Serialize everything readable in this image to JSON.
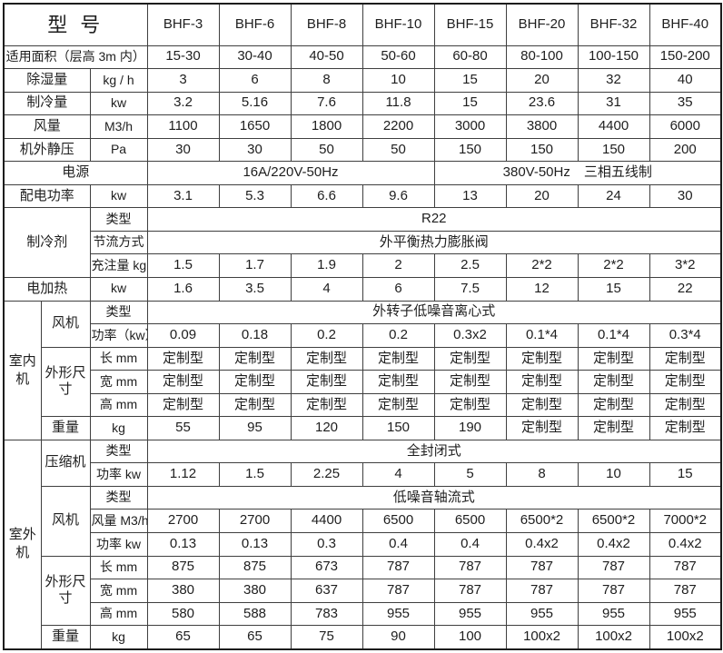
{
  "header": {
    "title": "型 号",
    "models": [
      "BHF-3",
      "BHF-6",
      "BHF-8",
      "BHF-10",
      "BHF-15",
      "BHF-20",
      "BHF-32",
      "BHF-40"
    ]
  },
  "rows": {
    "area": {
      "label": "适用面积（层高 3m 内）",
      "values": [
        "15-30",
        "30-40",
        "40-50",
        "50-60",
        "60-80",
        "80-100",
        "100-150",
        "150-200"
      ]
    },
    "dehumidify": {
      "label": "除湿量",
      "unit": "kg / h",
      "values": [
        "3",
        "6",
        "8",
        "10",
        "15",
        "20",
        "32",
        "40"
      ]
    },
    "cooling": {
      "label": "制冷量",
      "unit": "kw",
      "values": [
        "3.2",
        "5.16",
        "7.6",
        "11.8",
        "15",
        "23.6",
        "31",
        "35"
      ]
    },
    "airflow": {
      "label": "风量",
      "unit": "M3/h",
      "values": [
        "1100",
        "1650",
        "1800",
        "2200",
        "3000",
        "3800",
        "4400",
        "6000"
      ]
    },
    "static_pressure": {
      "label": "机外静压",
      "unit": "Pa",
      "values": [
        "30",
        "30",
        "50",
        "50",
        "150",
        "150",
        "150",
        "200"
      ]
    },
    "power_supply": {
      "label": "电源",
      "left": "16A/220V-50Hz",
      "right": "380V-50Hz　三相五线制"
    },
    "power_distribution": {
      "label": "配电功率",
      "unit": "kw",
      "values": [
        "3.1",
        "5.3",
        "6.6",
        "9.6",
        "13",
        "20",
        "24",
        "30"
      ]
    },
    "refrigerant": {
      "label": "制冷剂",
      "type_label": "类型",
      "type_value": "R22",
      "throttle_label": "节流方式",
      "throttle_value": "外平衡热力膨胀阀",
      "charge_label": "充注量 kg",
      "charge_values": [
        "1.5",
        "1.7",
        "1.9",
        "2",
        "2.5",
        "2*2",
        "2*2",
        "3*2"
      ]
    },
    "electric_heater": {
      "label": "电加热",
      "unit": "kw",
      "values": [
        "1.6",
        "3.5",
        "4",
        "6",
        "7.5",
        "12",
        "15",
        "22"
      ]
    },
    "indoor": {
      "label": "室内机",
      "fan": {
        "label": "风机",
        "type_label": "类型",
        "type_value": "外转子低噪音离心式",
        "power_label": "功率（kw）",
        "power_values": [
          "0.09",
          "0.18",
          "0.2",
          "0.2",
          "0.3x2",
          "0.1*4",
          "0.1*4",
          "0.3*4"
        ]
      },
      "dims": {
        "label": "外形尺寸",
        "length_label": "长 mm",
        "length_values": [
          "定制型",
          "定制型",
          "定制型",
          "定制型",
          "定制型",
          "定制型",
          "定制型",
          "定制型"
        ],
        "width_label": "宽 mm",
        "width_values": [
          "定制型",
          "定制型",
          "定制型",
          "定制型",
          "定制型",
          "定制型",
          "定制型",
          "定制型"
        ],
        "height_label": "高 mm",
        "height_values": [
          "定制型",
          "定制型",
          "定制型",
          "定制型",
          "定制型",
          "定制型",
          "定制型",
          "定制型"
        ]
      },
      "weight": {
        "label": "重量",
        "unit": "kg",
        "values": [
          "55",
          "95",
          "120",
          "150",
          "190",
          "定制型",
          "定制型",
          "定制型"
        ]
      }
    },
    "outdoor": {
      "label": "室外机",
      "compressor": {
        "label": "压缩机",
        "type_label": "类型",
        "type_value": "全封闭式",
        "power_label": "功率 kw",
        "power_values": [
          "1.12",
          "1.5",
          "2.25",
          "4",
          "5",
          "8",
          "10",
          "15"
        ]
      },
      "fan": {
        "label": "风机",
        "type_label": "类型",
        "type_value": "低噪音轴流式",
        "airflow_label": "风量 M3/h",
        "airflow_values": [
          "2700",
          "2700",
          "4400",
          "6500",
          "6500",
          "6500*2",
          "6500*2",
          "7000*2"
        ],
        "power_label": "功率 kw",
        "power_values": [
          "0.13",
          "0.13",
          "0.3",
          "0.4",
          "0.4",
          "0.4x2",
          "0.4x2",
          "0.4x2"
        ]
      },
      "dims": {
        "label": "外形尺寸",
        "length_label": "长 mm",
        "length_values": [
          "875",
          "875",
          "673",
          "787",
          "787",
          "787",
          "787",
          "787"
        ],
        "width_label": "宽 mm",
        "width_values": [
          "380",
          "380",
          "637",
          "787",
          "787",
          "787",
          "787",
          "787"
        ],
        "height_label": "高 mm",
        "height_values": [
          "580",
          "588",
          "783",
          "955",
          "955",
          "955",
          "955",
          "955"
        ]
      },
      "weight": {
        "label": "重量",
        "unit": "kg",
        "values": [
          "65",
          "65",
          "75",
          "90",
          "100",
          "100x2",
          "100x2",
          "100x2"
        ]
      }
    }
  }
}
